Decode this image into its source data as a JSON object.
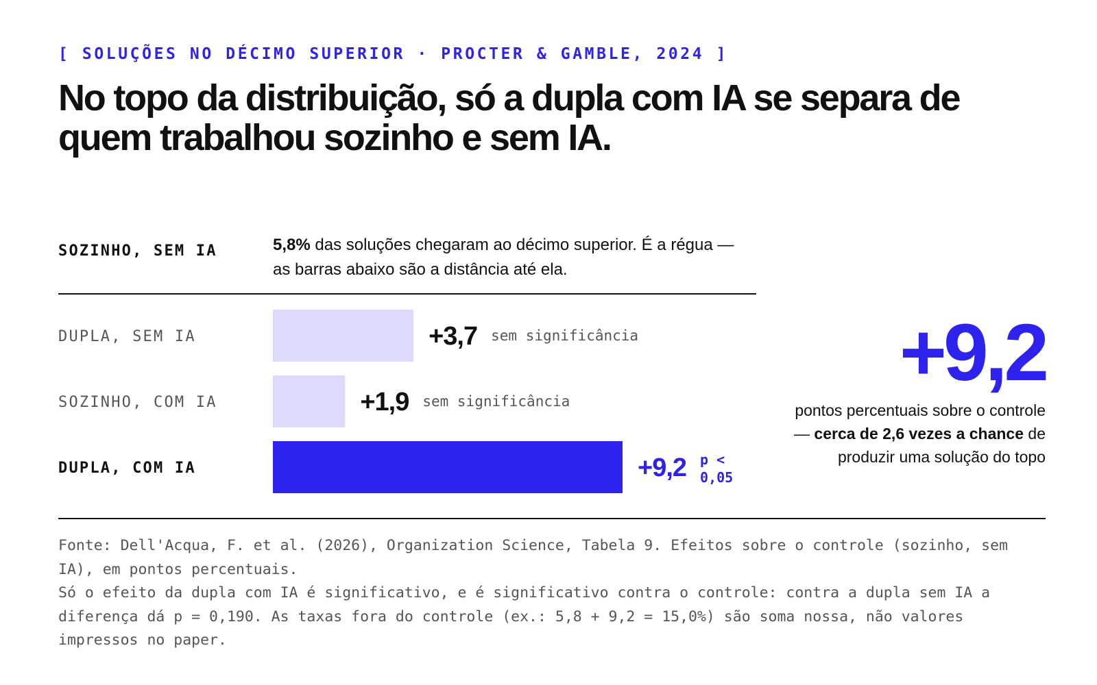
{
  "eyebrow": "[ SOLUÇÕES NO DÉCIMO SUPERIOR · PROCTER & GAMBLE, 2024 ]",
  "headline": "No topo da distribuição, só a dupla com IA se separa de quem trabalhou sozinho e sem IA.",
  "baseline": {
    "label": "SOZINHO, SEM IA",
    "value_text": "5,8%",
    "description": " das soluções chegaram ao décimo superior. É a régua — as barras abaixo são a distância até ela."
  },
  "chart_data": {
    "type": "bar",
    "orientation": "horizontal",
    "baseline_value": 5.8,
    "unit": "pontos percentuais",
    "categories": [
      "DUPLA, SEM IA",
      "SOZINHO, COM IA",
      "DUPLA, COM IA"
    ],
    "values": [
      3.7,
      1.9,
      9.2
    ],
    "value_labels": [
      "+3,7",
      "+1,9",
      "+9,2"
    ],
    "notes": [
      "sem significância",
      "sem significância",
      "p < 0,05"
    ],
    "highlight": [
      false,
      false,
      true
    ],
    "xlim": [
      0,
      9.2
    ]
  },
  "colors": {
    "accent": "#2d22ee",
    "bar_muted": "#dddafa",
    "text": "#111111",
    "muted_text": "#555555"
  },
  "hero": {
    "number": "+9,2",
    "caption_pre": "pontos percentuais sobre o controle — ",
    "caption_bold": "cerca de 2,6 vezes a chance",
    "caption_post": " de produzir uma solução do topo"
  },
  "footnote": {
    "line1": "Fonte: Dell'Acqua, F. et al. (2026), Organization Science, Tabela 9. Efeitos sobre o controle (sozinho, sem IA), em pontos percentuais.",
    "line2": "Só o efeito da dupla com IA é significativo, e é significativo contra o controle: contra a dupla sem IA a diferença dá p = 0,190. As taxas fora do controle (ex.: 5,8 + 9,2 = 15,0%) são soma nossa, não valores impressos no paper."
  }
}
